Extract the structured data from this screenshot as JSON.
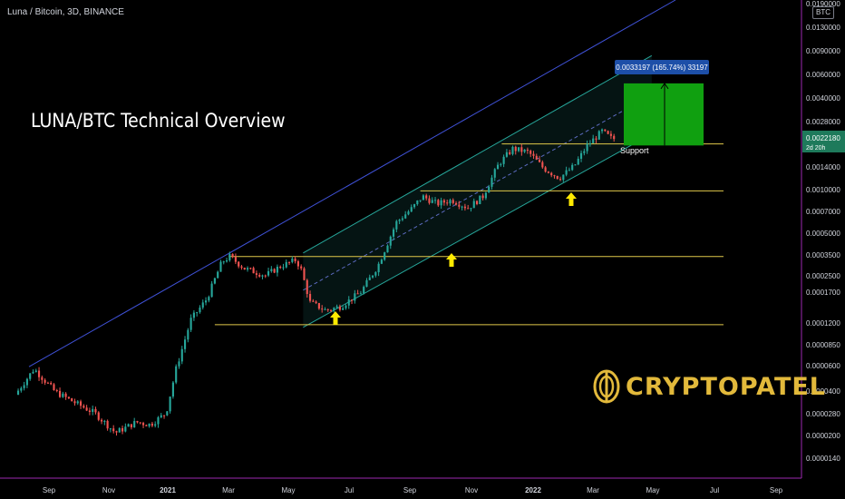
{
  "header": {
    "title": "Luna / Bitcoin, 3D, BINANCE"
  },
  "headline": "LUNA/BTC Technical Overview",
  "logo": {
    "text": "CRYPTOPATEL",
    "color": "#e2b93b"
  },
  "colors": {
    "up": "#26a69a",
    "down": "#ef5350",
    "channel": "#26a69a",
    "trendline": "#3f51d6",
    "support": "#e0c84a",
    "target": "#10a010",
    "arrow": "#ffea00",
    "price_badge": "#1e7a5b"
  },
  "chart_data": {
    "type": "candlestick",
    "title": "Luna / Bitcoin, 3D, BINANCE",
    "y_scale": "log",
    "currency": "BTC",
    "y_ticks": [
      "0.0190000",
      "0.0130000",
      "0.0090000",
      "0.0060000",
      "0.0040000",
      "0.0028000",
      "0.0022180",
      "0.0014000",
      "0.0010000",
      "0.0007000",
      "0.0005000",
      "0.0003500",
      "0.0002500",
      "0.0001700",
      "0.0001200",
      "0.0000850",
      "0.0000600",
      "0.0000400",
      "0.0000280",
      "0.0000200",
      "0.0000140"
    ],
    "x_ticks": [
      "Sep",
      "Nov",
      "2021",
      "Mar",
      "May",
      "Jul",
      "Sep",
      "Nov",
      "2022",
      "Mar",
      "May",
      "Jul",
      "Sep"
    ],
    "last_price": {
      "value": "0.0022180",
      "countdown": "2d 20h"
    },
    "support_levels": [
      0.00012,
      0.00035,
      0.00098,
      0.00205
    ],
    "support_label": "Support",
    "measure": {
      "label": "0.0033197 (165.74%) 33197",
      "from": 0.002,
      "to": 0.0053
    },
    "path": [
      [
        "2020-08-01",
        4e-05
      ],
      [
        "2020-08-20",
        6e-05
      ],
      [
        "2020-09-10",
        4.2e-05
      ],
      [
        "2020-10-01",
        3.5e-05
      ],
      [
        "2020-10-20",
        3e-05
      ],
      [
        "2020-11-10",
        2.2e-05
      ],
      [
        "2020-12-01",
        2.6e-05
      ],
      [
        "2020-12-15",
        2.5e-05
      ],
      [
        "2020-12-31",
        3e-05
      ],
      [
        "2021-01-10",
        6e-05
      ],
      [
        "2021-01-25",
        0.00013
      ],
      [
        "2021-02-10",
        0.00018
      ],
      [
        "2021-02-25",
        0.00032
      ],
      [
        "2021-03-05",
        0.00035
      ],
      [
        "2021-03-20",
        0.00029
      ],
      [
        "2021-04-10",
        0.00026
      ],
      [
        "2021-04-25",
        0.0003
      ],
      [
        "2021-05-10",
        0.00033
      ],
      [
        "2021-05-15",
        0.0003
      ],
      [
        "2021-05-25",
        0.00017
      ],
      [
        "2021-06-10",
        0.00015
      ],
      [
        "2021-06-25",
        0.00016
      ],
      [
        "2021-07-15",
        0.0002
      ],
      [
        "2021-08-01",
        0.0003
      ],
      [
        "2021-08-20",
        0.0006
      ],
      [
        "2021-09-05",
        0.00075
      ],
      [
        "2021-09-15",
        0.0009
      ],
      [
        "2021-09-30",
        0.0008
      ],
      [
        "2021-10-15",
        0.00085
      ],
      [
        "2021-10-31",
        0.00075
      ],
      [
        "2021-11-15",
        0.0009
      ],
      [
        "2021-12-01",
        0.0015
      ],
      [
        "2021-12-15",
        0.0019
      ],
      [
        "2021-12-31",
        0.0018
      ],
      [
        "2022-01-15",
        0.0014
      ],
      [
        "2022-01-31",
        0.0012
      ],
      [
        "2022-02-15",
        0.00145
      ],
      [
        "2022-02-28",
        0.002
      ],
      [
        "2022-03-15",
        0.0025
      ],
      [
        "2022-03-25",
        0.00222
      ]
    ]
  }
}
